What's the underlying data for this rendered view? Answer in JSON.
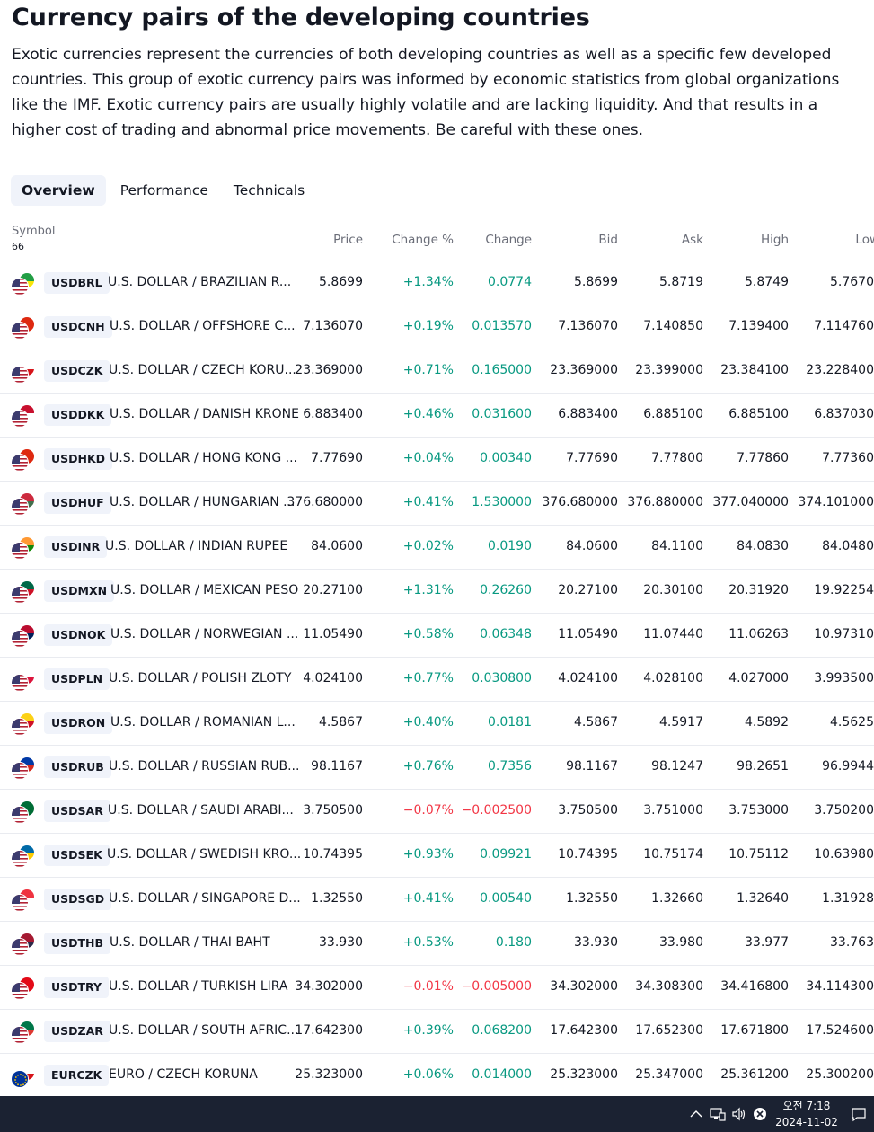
{
  "page": {
    "title": "Currency pairs of the developing countries",
    "description": "Exotic currencies represent the currencies of both developing countries as well as a specific few developed countries. This group of exotic currency pairs was informed by economic statistics from global organizations like the IMF. Exotic currency pairs are usually highly volatile and are lacking liquidity. And that results in a higher cost of trading and abnormal price movements. Be careful with these ones."
  },
  "tabs": [
    {
      "label": "Overview",
      "active": true
    },
    {
      "label": "Performance",
      "active": false
    },
    {
      "label": "Technicals",
      "active": false
    }
  ],
  "table": {
    "header": {
      "symbol": "Symbol",
      "count": "66",
      "price": "Price",
      "change_pct": "Change %",
      "change": "Change",
      "bid": "Bid",
      "ask": "Ask",
      "high": "High",
      "low": "Low"
    },
    "rows": [
      {
        "ticker": "USDBRL",
        "name": "U.S. DOLLAR / BRAZILIAN R...",
        "price": "5.8699",
        "change_pct": "+1.34%",
        "change": "0.0774",
        "bid": "5.8699",
        "ask": "5.8719",
        "high": "5.8749",
        "low": "5.7670",
        "dir": "pos",
        "quote_colors": [
          "#229e45",
          "#f8e509"
        ]
      },
      {
        "ticker": "USDCNH",
        "name": "U.S. DOLLAR / OFFSHORE C...",
        "price": "7.136070",
        "change_pct": "+0.19%",
        "change": "0.013570",
        "bid": "7.136070",
        "ask": "7.140850",
        "high": "7.139400",
        "low": "7.114760",
        "dir": "pos",
        "quote_colors": [
          "#de2910",
          "#de2910"
        ]
      },
      {
        "ticker": "USDCZK",
        "name": "U.S. DOLLAR / CZECH KORU...",
        "price": "23.369000",
        "change_pct": "+0.71%",
        "change": "0.165000",
        "bid": "23.369000",
        "ask": "23.399000",
        "high": "23.384100",
        "low": "23.228400",
        "dir": "pos",
        "quote_colors": [
          "#ffffff",
          "#d7141a"
        ]
      },
      {
        "ticker": "USDDKK",
        "name": "U.S. DOLLAR / DANISH KRONE",
        "price": "6.883400",
        "change_pct": "+0.46%",
        "change": "0.031600",
        "bid": "6.883400",
        "ask": "6.885100",
        "high": "6.885100",
        "low": "6.837030",
        "dir": "pos",
        "quote_colors": [
          "#c8102e",
          "#ffffff"
        ]
      },
      {
        "ticker": "USDHKD",
        "name": "U.S. DOLLAR / HONG KONG ...",
        "price": "7.77690",
        "change_pct": "+0.04%",
        "change": "0.00340",
        "bid": "7.77690",
        "ask": "7.77800",
        "high": "7.77860",
        "low": "7.77360",
        "dir": "pos",
        "quote_colors": [
          "#de2910",
          "#de2910"
        ]
      },
      {
        "ticker": "USDHUF",
        "name": "U.S. DOLLAR / HUNGARIAN ...",
        "price": "376.680000",
        "change_pct": "+0.41%",
        "change": "1.530000",
        "bid": "376.680000",
        "ask": "376.880000",
        "high": "377.040000",
        "low": "374.101000",
        "dir": "pos",
        "quote_colors": [
          "#cd2a3e",
          "#436f4d"
        ]
      },
      {
        "ticker": "USDINR",
        "name": "U.S. DOLLAR / INDIAN RUPEE",
        "price": "84.0600",
        "change_pct": "+0.02%",
        "change": "0.0190",
        "bid": "84.0600",
        "ask": "84.1100",
        "high": "84.0830",
        "low": "84.0480",
        "dir": "pos",
        "quote_colors": [
          "#ff9933",
          "#138808"
        ]
      },
      {
        "ticker": "USDMXN",
        "name": "U.S. DOLLAR / MEXICAN PESO",
        "price": "20.27100",
        "change_pct": "+1.31%",
        "change": "0.26260",
        "bid": "20.27100",
        "ask": "20.30100",
        "high": "20.31920",
        "low": "19.92254",
        "dir": "pos",
        "quote_colors": [
          "#006847",
          "#ce1126"
        ]
      },
      {
        "ticker": "USDNOK",
        "name": "U.S. DOLLAR / NORWEGIAN ...",
        "price": "11.05490",
        "change_pct": "+0.58%",
        "change": "0.06348",
        "bid": "11.05490",
        "ask": "11.07440",
        "high": "11.06263",
        "low": "10.97310",
        "dir": "pos",
        "quote_colors": [
          "#ba0c2f",
          "#00205b"
        ]
      },
      {
        "ticker": "USDPLN",
        "name": "U.S. DOLLAR / POLISH ZLOTY",
        "price": "4.024100",
        "change_pct": "+0.77%",
        "change": "0.030800",
        "bid": "4.024100",
        "ask": "4.028100",
        "high": "4.027000",
        "low": "3.993500",
        "dir": "pos",
        "quote_colors": [
          "#ffffff",
          "#dc143c"
        ]
      },
      {
        "ticker": "USDRON",
        "name": "U.S. DOLLAR / ROMANIAN L...",
        "price": "4.5867",
        "change_pct": "+0.40%",
        "change": "0.0181",
        "bid": "4.5867",
        "ask": "4.5917",
        "high": "4.5892",
        "low": "4.5625",
        "dir": "pos",
        "quote_colors": [
          "#fcd116",
          "#ce1126"
        ]
      },
      {
        "ticker": "USDRUB",
        "name": "U.S. DOLLAR / RUSSIAN RUB...",
        "price": "98.1167",
        "change_pct": "+0.76%",
        "change": "0.7356",
        "bid": "98.1167",
        "ask": "98.1247",
        "high": "98.2651",
        "low": "96.9944",
        "dir": "pos",
        "quote_colors": [
          "#0039a6",
          "#d52b1e"
        ]
      },
      {
        "ticker": "USDSAR",
        "name": "U.S. DOLLAR / SAUDI ARABI...",
        "price": "3.750500",
        "change_pct": "−0.07%",
        "change": "−0.002500",
        "bid": "3.750500",
        "ask": "3.751000",
        "high": "3.753000",
        "low": "3.750200",
        "dir": "neg",
        "quote_colors": [
          "#006c35",
          "#006c35"
        ]
      },
      {
        "ticker": "USDSEK",
        "name": "U.S. DOLLAR / SWEDISH KRO...",
        "price": "10.74395",
        "change_pct": "+0.93%",
        "change": "0.09921",
        "bid": "10.74395",
        "ask": "10.75174",
        "high": "10.75112",
        "low": "10.63980",
        "dir": "pos",
        "quote_colors": [
          "#006aa7",
          "#fecc00"
        ]
      },
      {
        "ticker": "USDSGD",
        "name": "U.S. DOLLAR / SINGAPORE D...",
        "price": "1.32550",
        "change_pct": "+0.41%",
        "change": "0.00540",
        "bid": "1.32550",
        "ask": "1.32660",
        "high": "1.32640",
        "low": "1.31928",
        "dir": "pos",
        "quote_colors": [
          "#ef3340",
          "#ffffff"
        ]
      },
      {
        "ticker": "USDTHB",
        "name": "U.S. DOLLAR / THAI BAHT",
        "price": "33.930",
        "change_pct": "+0.53%",
        "change": "0.180",
        "bid": "33.930",
        "ask": "33.980",
        "high": "33.977",
        "low": "33.763",
        "dir": "pos",
        "quote_colors": [
          "#a51931",
          "#2d2a4a"
        ]
      },
      {
        "ticker": "USDTRY",
        "name": "U.S. DOLLAR / TURKISH LIRA",
        "price": "34.302000",
        "change_pct": "−0.01%",
        "change": "−0.005000",
        "bid": "34.302000",
        "ask": "34.308300",
        "high": "34.416800",
        "low": "34.114300",
        "dir": "neg",
        "quote_colors": [
          "#e30a17",
          "#e30a17"
        ]
      },
      {
        "ticker": "USDZAR",
        "name": "U.S. DOLLAR / SOUTH AFRIC...",
        "price": "17.642300",
        "change_pct": "+0.39%",
        "change": "0.068200",
        "bid": "17.642300",
        "ask": "17.652300",
        "high": "17.671800",
        "low": "17.524600",
        "dir": "pos",
        "quote_colors": [
          "#007749",
          "#de3831"
        ]
      },
      {
        "ticker": "EURCZK",
        "name": "EURO / CZECH KORUNA",
        "price": "25.323000",
        "change_pct": "+0.06%",
        "change": "0.014000",
        "bid": "25.323000",
        "ask": "25.347000",
        "high": "25.361200",
        "low": "25.300200",
        "dir": "pos",
        "base": "eu",
        "quote_colors": [
          "#ffffff",
          "#d7141a"
        ]
      }
    ]
  },
  "taskbar": {
    "chevron_icon": "chevron-up-icon",
    "network_icon": "network-icon",
    "volume_icon": "volume-icon",
    "close_icon": "error-circle-icon",
    "time": "오전 7:18",
    "date": "2024-11-02",
    "notification_icon": "chat-bubble-icon"
  }
}
